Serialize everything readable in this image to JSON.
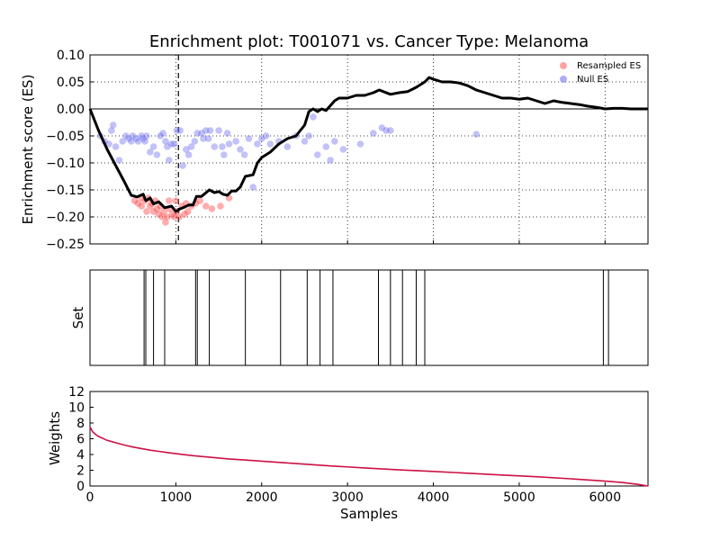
{
  "chart_data": [
    {
      "type": "line",
      "title": "Enrichment plot: T001071 vs. Cancer Type: Melanoma",
      "xlabel": "",
      "ylabel": "Enrichment score (ES)",
      "xlim": [
        0,
        6500
      ],
      "ylim": [
        -0.25,
        0.1
      ],
      "yticks": [
        -0.25,
        -0.2,
        -0.15,
        -0.1,
        -0.05,
        0.0,
        0.05,
        0.1
      ],
      "ytick_labels": [
        "−0.25",
        "−0.20",
        "−0.15",
        "−0.10",
        "−0.05",
        "0.00",
        "0.05",
        "0.10"
      ],
      "xticks": [
        0,
        1000,
        2000,
        3000,
        4000,
        5000,
        6000
      ],
      "grid": true,
      "legend_position": "top-right",
      "zero_line": 0.0,
      "vline_x": 1030,
      "legend": [
        {
          "label": "Resampled ES",
          "color": "#ff6666"
        },
        {
          "label": "Null ES",
          "color": "#7777ee"
        }
      ],
      "series": [
        {
          "kind": "line",
          "color": "#000000",
          "points": [
            [
              0,
              0
            ],
            [
              100,
              -0.04
            ],
            [
              200,
              -0.075
            ],
            [
              300,
              -0.105
            ],
            [
              400,
              -0.135
            ],
            [
              480,
              -0.16
            ],
            [
              550,
              -0.163
            ],
            [
              620,
              -0.158
            ],
            [
              650,
              -0.17
            ],
            [
              700,
              -0.165
            ],
            [
              740,
              -0.176
            ],
            [
              800,
              -0.172
            ],
            [
              870,
              -0.183
            ],
            [
              950,
              -0.18
            ],
            [
              1000,
              -0.19
            ],
            [
              1050,
              -0.185
            ],
            [
              1100,
              -0.182
            ],
            [
              1150,
              -0.178
            ],
            [
              1200,
              -0.178
            ],
            [
              1240,
              -0.162
            ],
            [
              1300,
              -0.162
            ],
            [
              1390,
              -0.15
            ],
            [
              1450,
              -0.155
            ],
            [
              1500,
              -0.153
            ],
            [
              1550,
              -0.158
            ],
            [
              1600,
              -0.16
            ],
            [
              1650,
              -0.152
            ],
            [
              1700,
              -0.152
            ],
            [
              1750,
              -0.145
            ],
            [
              1810,
              -0.125
            ],
            [
              1900,
              -0.122
            ],
            [
              1950,
              -0.1
            ],
            [
              2000,
              -0.09
            ],
            [
              2100,
              -0.08
            ],
            [
              2200,
              -0.065
            ],
            [
              2300,
              -0.055
            ],
            [
              2400,
              -0.05
            ],
            [
              2500,
              -0.03
            ],
            [
              2550,
              -0.005
            ],
            [
              2600,
              0.0
            ],
            [
              2650,
              -0.005
            ],
            [
              2700,
              0.0
            ],
            [
              2750,
              -0.003
            ],
            [
              2850,
              0.015
            ],
            [
              2900,
              0.02
            ],
            [
              3000,
              0.02
            ],
            [
              3100,
              0.025
            ],
            [
              3200,
              0.025
            ],
            [
              3300,
              0.03
            ],
            [
              3370,
              0.035
            ],
            [
              3500,
              0.027
            ],
            [
              3600,
              0.03
            ],
            [
              3700,
              0.032
            ],
            [
              3800,
              0.04
            ],
            [
              3900,
              0.05
            ],
            [
              3950,
              0.058
            ],
            [
              4000,
              0.055
            ],
            [
              4100,
              0.05
            ],
            [
              4200,
              0.05
            ],
            [
              4300,
              0.048
            ],
            [
              4400,
              0.043
            ],
            [
              4500,
              0.035
            ],
            [
              4600,
              0.03
            ],
            [
              4700,
              0.025
            ],
            [
              4800,
              0.02
            ],
            [
              4900,
              0.02
            ],
            [
              5000,
              0.018
            ],
            [
              5100,
              0.02
            ],
            [
              5200,
              0.015
            ],
            [
              5300,
              0.01
            ],
            [
              5400,
              0.015
            ],
            [
              5500,
              0.012
            ],
            [
              5600,
              0.01
            ],
            [
              5700,
              0.008
            ],
            [
              5800,
              0.005
            ],
            [
              5900,
              0.003
            ],
            [
              6000,
              0.0
            ],
            [
              6100,
              0.001
            ],
            [
              6200,
              0.001
            ],
            [
              6300,
              0.0
            ],
            [
              6400,
              0.0
            ],
            [
              6500,
              0.0
            ]
          ]
        },
        {
          "kind": "scatter",
          "name": "Resampled ES",
          "color": "#ff3333",
          "points": [
            [
              520,
              -0.17
            ],
            [
              560,
              -0.175
            ],
            [
              600,
              -0.18
            ],
            [
              640,
              -0.17
            ],
            [
              660,
              -0.19
            ],
            [
              700,
              -0.18
            ],
            [
              720,
              -0.175
            ],
            [
              740,
              -0.19
            ],
            [
              780,
              -0.185
            ],
            [
              800,
              -0.195
            ],
            [
              820,
              -0.18
            ],
            [
              840,
              -0.2
            ],
            [
              860,
              -0.19
            ],
            [
              880,
              -0.21
            ],
            [
              900,
              -0.2
            ],
            [
              930,
              -0.185
            ],
            [
              960,
              -0.195
            ],
            [
              980,
              -0.2
            ],
            [
              1010,
              -0.19
            ],
            [
              1040,
              -0.2
            ],
            [
              1070,
              -0.18
            ],
            [
              1100,
              -0.195
            ],
            [
              1140,
              -0.19
            ],
            [
              1180,
              -0.18
            ],
            [
              1230,
              -0.175
            ],
            [
              1280,
              -0.17
            ],
            [
              1350,
              -0.18
            ],
            [
              1420,
              -0.185
            ],
            [
              1520,
              -0.18
            ],
            [
              1620,
              -0.165
            ],
            [
              600,
              -0.165
            ],
            [
              680,
              -0.165
            ],
            [
              760,
              -0.17
            ],
            [
              920,
              -0.17
            ],
            [
              1000,
              -0.17
            ],
            [
              1120,
              -0.175
            ]
          ]
        },
        {
          "kind": "scatter",
          "name": "Null ES",
          "color": "#6666ee",
          "points": [
            [
              120,
              -0.05
            ],
            [
              170,
              -0.06
            ],
            [
              220,
              -0.065
            ],
            [
              250,
              -0.04
            ],
            [
              270,
              -0.03
            ],
            [
              300,
              -0.07
            ],
            [
              340,
              -0.095
            ],
            [
              380,
              -0.06
            ],
            [
              420,
              -0.05
            ],
            [
              450,
              -0.055
            ],
            [
              480,
              -0.06
            ],
            [
              500,
              -0.05
            ],
            [
              540,
              -0.055
            ],
            [
              560,
              -0.06
            ],
            [
              600,
              -0.05
            ],
            [
              620,
              -0.055
            ],
            [
              640,
              -0.06
            ],
            [
              660,
              -0.05
            ],
            [
              700,
              -0.08
            ],
            [
              740,
              -0.07
            ],
            [
              780,
              -0.085
            ],
            [
              820,
              -0.05
            ],
            [
              850,
              -0.045
            ],
            [
              880,
              -0.06
            ],
            [
              900,
              -0.07
            ],
            [
              920,
              -0.095
            ],
            [
              950,
              -0.065
            ],
            [
              980,
              -0.065
            ],
            [
              1010,
              -0.04
            ],
            [
              1050,
              -0.04
            ],
            [
              1080,
              -0.105
            ],
            [
              1120,
              -0.075
            ],
            [
              1150,
              -0.085
            ],
            [
              1180,
              -0.07
            ],
            [
              1220,
              -0.06
            ],
            [
              1250,
              -0.045
            ],
            [
              1300,
              -0.045
            ],
            [
              1320,
              -0.055
            ],
            [
              1350,
              -0.04
            ],
            [
              1380,
              -0.055
            ],
            [
              1400,
              -0.04
            ],
            [
              1450,
              -0.07
            ],
            [
              1500,
              -0.04
            ],
            [
              1540,
              -0.07
            ],
            [
              1560,
              -0.085
            ],
            [
              1600,
              -0.045
            ],
            [
              1620,
              -0.065
            ],
            [
              1700,
              -0.06
            ],
            [
              1750,
              -0.075
            ],
            [
              1800,
              -0.085
            ],
            [
              1850,
              -0.055
            ],
            [
              1900,
              -0.145
            ],
            [
              1950,
              -0.065
            ],
            [
              2000,
              -0.055
            ],
            [
              2050,
              -0.05
            ],
            [
              2100,
              -0.065
            ],
            [
              2200,
              -0.06
            ],
            [
              2300,
              -0.07
            ],
            [
              2400,
              -0.05
            ],
            [
              2500,
              -0.06
            ],
            [
              2550,
              -0.05
            ],
            [
              2600,
              -0.015
            ],
            [
              2650,
              -0.085
            ],
            [
              2750,
              -0.07
            ],
            [
              2800,
              -0.095
            ],
            [
              2850,
              -0.06
            ],
            [
              2950,
              -0.075
            ],
            [
              3150,
              -0.065
            ],
            [
              3300,
              -0.045
            ],
            [
              3400,
              -0.035
            ],
            [
              3450,
              -0.04
            ],
            [
              3500,
              -0.04
            ],
            [
              4500,
              -0.047
            ]
          ]
        }
      ]
    },
    {
      "type": "bar",
      "title": "",
      "xlabel": "",
      "ylabel": "Set",
      "xlim": [
        0,
        6500
      ],
      "set_positions": [
        630,
        650,
        740,
        870,
        1230,
        1250,
        1390,
        1810,
        2220,
        2530,
        2680,
        2830,
        3360,
        3500,
        3640,
        3800,
        3900,
        5980,
        6040
      ]
    },
    {
      "type": "line",
      "title": "",
      "xlabel": "Samples",
      "ylabel": "Weights",
      "xlim": [
        0,
        6500
      ],
      "ylim": [
        0,
        12
      ],
      "yticks": [
        0,
        2,
        4,
        6,
        8,
        10,
        12
      ],
      "xticks": [
        0,
        1000,
        2000,
        3000,
        4000,
        5000,
        6000
      ],
      "color": "#cc1144",
      "points": [
        [
          0,
          7.5
        ],
        [
          30,
          6.9
        ],
        [
          60,
          6.6
        ],
        [
          100,
          6.3
        ],
        [
          200,
          5.8
        ],
        [
          300,
          5.5
        ],
        [
          400,
          5.2
        ],
        [
          500,
          4.95
        ],
        [
          600,
          4.75
        ],
        [
          700,
          4.55
        ],
        [
          800,
          4.4
        ],
        [
          900,
          4.25
        ],
        [
          1000,
          4.1
        ],
        [
          1200,
          3.85
        ],
        [
          1400,
          3.65
        ],
        [
          1600,
          3.45
        ],
        [
          1800,
          3.3
        ],
        [
          2000,
          3.15
        ],
        [
          2400,
          2.85
        ],
        [
          2800,
          2.55
        ],
        [
          3200,
          2.3
        ],
        [
          3600,
          2.05
        ],
        [
          4000,
          1.85
        ],
        [
          4400,
          1.62
        ],
        [
          4800,
          1.4
        ],
        [
          5200,
          1.18
        ],
        [
          5600,
          0.92
        ],
        [
          6000,
          0.62
        ],
        [
          6200,
          0.45
        ],
        [
          6400,
          0.18
        ],
        [
          6500,
          0.0
        ]
      ]
    }
  ]
}
